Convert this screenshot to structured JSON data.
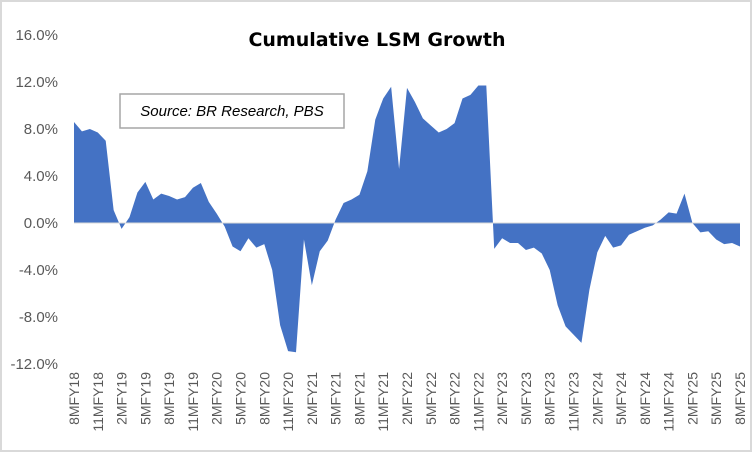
{
  "chart_data": {
    "type": "area",
    "title": "Cumulative LSM Growth",
    "annotation": "Source: BR Research, PBS",
    "xlabel": "",
    "ylabel": "",
    "ylim": [
      -12,
      16
    ],
    "yticks": [
      16,
      12,
      8,
      4,
      0,
      -4,
      -8,
      -12
    ],
    "ytick_labels": [
      "16.0%",
      "12.0%",
      "8.0%",
      "4.0%",
      "0.0%",
      "-4.0%",
      "-8.0%",
      "-12.0%"
    ],
    "xtick_labels": [
      "8MFY18",
      "11MFY18",
      "2MFY19",
      "5MFY19",
      "8MFY19",
      "11MFY19",
      "2MFY20",
      "5MFY20",
      "8MFY20",
      "11MFY20",
      "2MFY21",
      "5MFY21",
      "8MFY21",
      "11MFY21",
      "2MFY22",
      "5MFY22",
      "8MFY22",
      "11MFY22",
      "2MFY23",
      "5MFY23",
      "8MFY23",
      "11MFY23",
      "2MFY24",
      "5MFY24",
      "8MFY24",
      "11MFY24",
      "2MFY25",
      "5MFY25",
      "8MFY25"
    ],
    "xtick_every": 3,
    "grid": false,
    "series": [
      {
        "name": "Cumulative LSM Growth",
        "color": "#4472c4",
        "values": [
          8.6,
          7.8,
          8.0,
          7.7,
          7.0,
          1.1,
          -0.5,
          0.5,
          2.6,
          3.5,
          2.0,
          2.5,
          2.3,
          2.0,
          2.2,
          3.0,
          3.4,
          1.8,
          0.8,
          -0.3,
          -2.0,
          -2.4,
          -1.3,
          -2.1,
          -1.8,
          -4.0,
          -8.7,
          -10.9,
          -11.0,
          -1.4,
          -5.3,
          -2.4,
          -1.5,
          0.3,
          1.7,
          2.0,
          2.4,
          4.4,
          8.8,
          10.6,
          11.6,
          4.6,
          11.5,
          10.3,
          8.9,
          8.3,
          7.7,
          8.0,
          8.5,
          10.6,
          10.9,
          11.7,
          11.7,
          -2.2,
          -1.3,
          -1.7,
          -1.7,
          -2.3,
          -2.1,
          -2.6,
          -4.0,
          -7.0,
          -8.8,
          -9.5,
          -10.2,
          -5.7,
          -2.5,
          -1.1,
          -2.1,
          -1.9,
          -1.0,
          -0.7,
          -0.4,
          -0.2,
          0.3,
          0.9,
          0.8,
          2.5,
          0.0,
          -0.8,
          -0.7,
          -1.4,
          -1.8,
          -1.7,
          -2.0
        ]
      }
    ]
  }
}
